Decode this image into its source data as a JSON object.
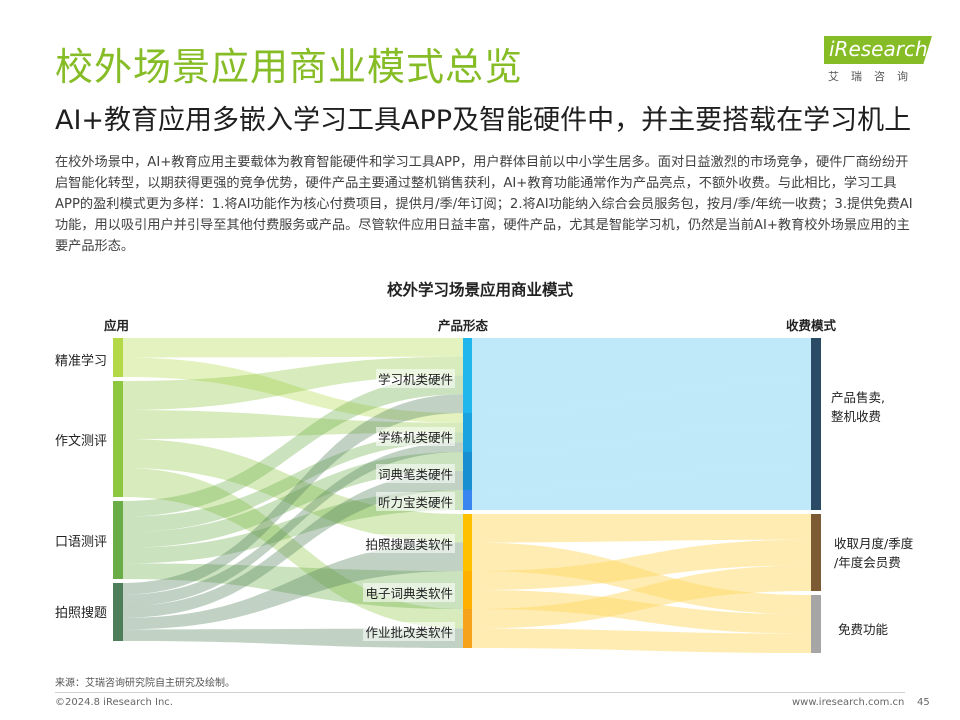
{
  "header": {
    "title": "校外场景应用商业模式总览",
    "subtitle": "AI+教育应用多嵌入学习工具APP及智能硬件中，并主要搭载在学习机上",
    "logo_text": "iResearch",
    "logo_cn": "艾瑞咨询"
  },
  "body_text": "在校外场景中，AI+教育应用主要载体为教育智能硬件和学习工具APP，用户群体目前以中小学生居多。面对日益激烈的市场竞争，硬件厂商纷纷开启智能化转型，以期获得更强的竞争优势，硬件产品主要通过整机销售获利，AI+教育功能通常作为产品亮点，不额外收费。与此相比，学习工具APP的盈利模式更为多样：1.将AI功能作为核心付费项目，提供月/季/年订阅；2.将AI功能纳入综合会员服务包，按月/季/年统一收费；3.提供免费AI功能，用以吸引用户并引导至其他付费服务或产品。尽管软件应用日益丰富，硬件产品，尤其是智能学习机，仍然是当前AI+教育校外场景应用的主要产品形态。",
  "diagram": {
    "title": "校外学习场景应用商业模式",
    "col_headers": {
      "apps": "应用",
      "products": "产品形态",
      "revenue": "收费模式"
    },
    "apps": [
      {
        "label": "精准学习",
        "color": "#b3d949"
      },
      {
        "label": "作文测评",
        "color": "#8dc63f"
      },
      {
        "label": "口语测评",
        "color": "#6aac45"
      },
      {
        "label": "拍照搜题",
        "color": "#4e7d5a"
      }
    ],
    "products": [
      {
        "label": "学习机类硬件",
        "color": "#21b6ec"
      },
      {
        "label": "学练机类硬件",
        "color": "#1aa3df"
      },
      {
        "label": "词典笔类硬件",
        "color": "#178fd1"
      },
      {
        "label": "听力宝类硬件",
        "color": "#3a86f0"
      },
      {
        "label": "拍照搜题类软件",
        "color": "#ffc000"
      },
      {
        "label": "电子词典类软件",
        "color": "#ffb000"
      },
      {
        "label": "作业批改类软件",
        "color": "#f6a31b"
      }
    ],
    "revenue": [
      {
        "label_lines": [
          "产品售卖,",
          "整机收费"
        ],
        "color": "#2b4a66"
      },
      {
        "label_lines": [
          "收取月度/季度",
          "/年度会员费"
        ],
        "color": "#7b5a34"
      },
      {
        "label_lines": [
          "免费功能"
        ],
        "color": "#a6a6a6"
      }
    ],
    "flows_app_product": [
      {
        "app": 0,
        "product": 0
      },
      {
        "app": 0,
        "product": 1
      },
      {
        "app": 1,
        "product": 0
      },
      {
        "app": 1,
        "product": 1
      },
      {
        "app": 1,
        "product": 4
      },
      {
        "app": 1,
        "product": 6
      },
      {
        "app": 2,
        "product": 0
      },
      {
        "app": 2,
        "product": 1
      },
      {
        "app": 2,
        "product": 2
      },
      {
        "app": 2,
        "product": 3
      },
      {
        "app": 2,
        "product": 5
      },
      {
        "app": 3,
        "product": 0
      },
      {
        "app": 3,
        "product": 1
      },
      {
        "app": 3,
        "product": 2
      },
      {
        "app": 3,
        "product": 4
      },
      {
        "app": 3,
        "product": 6
      }
    ],
    "flows_product_revenue": [
      {
        "product": 0,
        "revenue": 0
      },
      {
        "product": 1,
        "revenue": 0
      },
      {
        "product": 2,
        "revenue": 0
      },
      {
        "product": 3,
        "revenue": 0
      },
      {
        "product": 4,
        "revenue": 1
      },
      {
        "product": 4,
        "revenue": 2
      },
      {
        "product": 5,
        "revenue": 1
      },
      {
        "product": 5,
        "revenue": 2
      },
      {
        "product": 6,
        "revenue": 1
      },
      {
        "product": 6,
        "revenue": 2
      }
    ]
  },
  "footer": {
    "source": "来源：艾瑞咨询研究院自主研究及绘制。",
    "copyright": "©2024.8 iResearch Inc.",
    "url": "www.iresearch.com.cn",
    "page": "45"
  }
}
